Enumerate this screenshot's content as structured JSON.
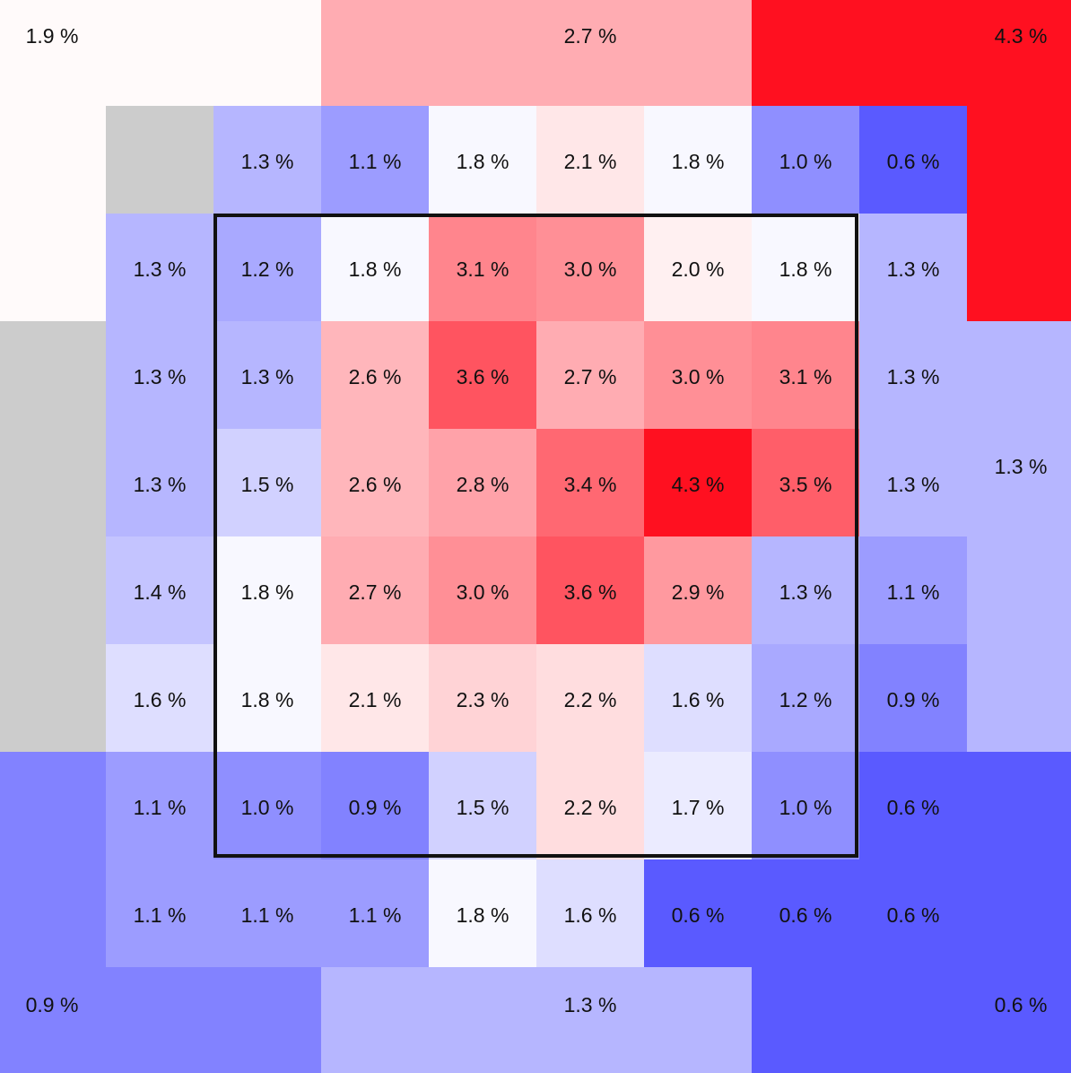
{
  "chart_data": {
    "type": "heatmap",
    "value_suffix": " %",
    "color_scale": {
      "low": "#5a5aff",
      "mid": "#ffffff",
      "high": "#ff1020",
      "min": 0.6,
      "mid_value": 1.85,
      "max": 4.3,
      "missing": "#cccccc"
    },
    "strike_zone_border": "#111111",
    "outer_zones": [
      {
        "id": "top-left",
        "value": 1.9,
        "label": "1.9 %"
      },
      {
        "id": "top-center",
        "value": 2.7,
        "label": "2.7 %"
      },
      {
        "id": "top-right",
        "value": 4.3,
        "label": "4.3 %"
      },
      {
        "id": "left-middle",
        "value": null,
        "label": ""
      },
      {
        "id": "right-middle",
        "value": 1.3,
        "label": "1.3 %"
      },
      {
        "id": "bottom-left",
        "value": 0.9,
        "label": "0.9 %"
      },
      {
        "id": "bottom-center",
        "value": 1.3,
        "label": "1.3 %"
      },
      {
        "id": "bottom-right",
        "value": 0.6,
        "label": "0.6 %"
      }
    ],
    "grid_rows": [
      [
        null,
        1.3,
        1.1,
        1.8,
        2.1,
        1.8,
        1.0,
        0.6
      ],
      [
        1.3,
        1.2,
        1.8,
        3.1,
        3.0,
        2.0,
        1.8,
        1.3
      ],
      [
        1.3,
        1.3,
        2.6,
        3.6,
        2.7,
        3.0,
        3.1,
        1.3
      ],
      [
        1.3,
        1.5,
        2.6,
        2.8,
        3.4,
        4.3,
        3.5,
        1.3
      ],
      [
        1.4,
        1.8,
        2.7,
        3.0,
        3.6,
        2.9,
        1.3,
        1.1
      ],
      [
        1.6,
        1.8,
        2.1,
        2.3,
        2.2,
        1.6,
        1.2,
        0.9
      ],
      [
        1.1,
        1.0,
        0.9,
        1.5,
        2.2,
        1.7,
        1.0,
        0.6
      ],
      [
        1.1,
        1.1,
        1.1,
        1.8,
        1.6,
        0.6,
        0.6,
        0.6
      ]
    ]
  }
}
